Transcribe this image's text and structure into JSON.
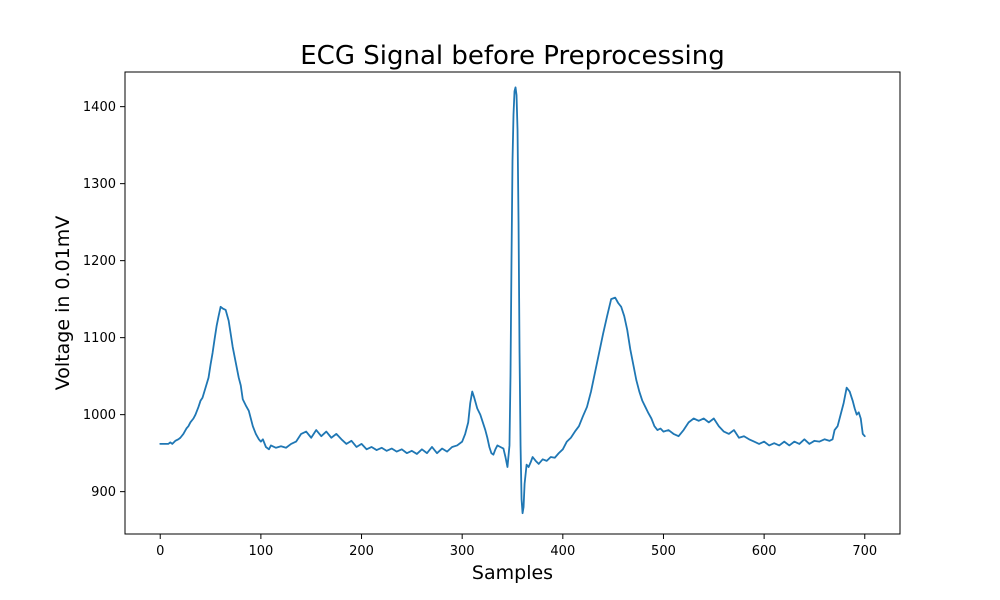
{
  "chart_data": {
    "type": "line",
    "title": "ECG Signal before Preprocessing",
    "xlabel": "Samples",
    "ylabel": "Voltage in 0.01mV",
    "xlim": [
      -35,
      735
    ],
    "ylim": [
      845,
      1445
    ],
    "xticks": [
      0,
      100,
      200,
      300,
      400,
      500,
      600,
      700
    ],
    "yticks": [
      900,
      1000,
      1100,
      1200,
      1300,
      1400
    ],
    "grid": false,
    "legend": "none",
    "series": [
      {
        "color": "#1f77b4",
        "points": [
          [
            0,
            962
          ],
          [
            5,
            962
          ],
          [
            8,
            962
          ],
          [
            10,
            964
          ],
          [
            12,
            962
          ],
          [
            15,
            966
          ],
          [
            18,
            968
          ],
          [
            20,
            970
          ],
          [
            23,
            975
          ],
          [
            26,
            982
          ],
          [
            28,
            985
          ],
          [
            30,
            990
          ],
          [
            33,
            995
          ],
          [
            35,
            1000
          ],
          [
            38,
            1010
          ],
          [
            40,
            1018
          ],
          [
            42,
            1022
          ],
          [
            45,
            1035
          ],
          [
            48,
            1048
          ],
          [
            50,
            1065
          ],
          [
            52,
            1080
          ],
          [
            54,
            1098
          ],
          [
            56,
            1115
          ],
          [
            58,
            1128
          ],
          [
            60,
            1140
          ],
          [
            62,
            1138
          ],
          [
            65,
            1136
          ],
          [
            68,
            1122
          ],
          [
            70,
            1105
          ],
          [
            72,
            1088
          ],
          [
            75,
            1068
          ],
          [
            78,
            1048
          ],
          [
            80,
            1038
          ],
          [
            82,
            1020
          ],
          [
            85,
            1012
          ],
          [
            88,
            1005
          ],
          [
            90,
            995
          ],
          [
            92,
            985
          ],
          [
            95,
            975
          ],
          [
            98,
            968
          ],
          [
            100,
            965
          ],
          [
            102,
            968
          ],
          [
            105,
            958
          ],
          [
            108,
            955
          ],
          [
            110,
            960
          ],
          [
            115,
            957
          ],
          [
            120,
            959
          ],
          [
            125,
            957
          ],
          [
            130,
            962
          ],
          [
            135,
            965
          ],
          [
            140,
            975
          ],
          [
            145,
            978
          ],
          [
            150,
            970
          ],
          [
            155,
            980
          ],
          [
            160,
            972
          ],
          [
            165,
            978
          ],
          [
            170,
            970
          ],
          [
            175,
            975
          ],
          [
            180,
            968
          ],
          [
            185,
            962
          ],
          [
            190,
            966
          ],
          [
            195,
            958
          ],
          [
            200,
            962
          ],
          [
            205,
            955
          ],
          [
            210,
            958
          ],
          [
            215,
            954
          ],
          [
            220,
            957
          ],
          [
            225,
            953
          ],
          [
            230,
            956
          ],
          [
            235,
            952
          ],
          [
            240,
            955
          ],
          [
            245,
            950
          ],
          [
            250,
            953
          ],
          [
            255,
            949
          ],
          [
            260,
            955
          ],
          [
            265,
            950
          ],
          [
            270,
            958
          ],
          [
            275,
            950
          ],
          [
            280,
            956
          ],
          [
            285,
            952
          ],
          [
            290,
            958
          ],
          [
            295,
            960
          ],
          [
            300,
            965
          ],
          [
            303,
            975
          ],
          [
            306,
            990
          ],
          [
            308,
            1015
          ],
          [
            310,
            1030
          ],
          [
            312,
            1022
          ],
          [
            315,
            1008
          ],
          [
            318,
            1000
          ],
          [
            320,
            992
          ],
          [
            323,
            980
          ],
          [
            325,
            970
          ],
          [
            327,
            958
          ],
          [
            329,
            950
          ],
          [
            331,
            948
          ],
          [
            333,
            955
          ],
          [
            335,
            960
          ],
          [
            338,
            958
          ],
          [
            341,
            956
          ],
          [
            343,
            945
          ],
          [
            345,
            932
          ],
          [
            347,
            960
          ],
          [
            348,
            1050
          ],
          [
            349,
            1200
          ],
          [
            350,
            1330
          ],
          [
            351,
            1390
          ],
          [
            352,
            1420
          ],
          [
            353,
            1425
          ],
          [
            354,
            1415
          ],
          [
            355,
            1370
          ],
          [
            356,
            1250
          ],
          [
            357,
            1080
          ],
          [
            358,
            960
          ],
          [
            359,
            890
          ],
          [
            360,
            872
          ],
          [
            361,
            880
          ],
          [
            362,
            910
          ],
          [
            364,
            935
          ],
          [
            366,
            932
          ],
          [
            368,
            938
          ],
          [
            370,
            945
          ],
          [
            373,
            940
          ],
          [
            376,
            936
          ],
          [
            380,
            942
          ],
          [
            384,
            940
          ],
          [
            388,
            945
          ],
          [
            392,
            944
          ],
          [
            396,
            950
          ],
          [
            400,
            955
          ],
          [
            404,
            965
          ],
          [
            408,
            970
          ],
          [
            412,
            978
          ],
          [
            416,
            985
          ],
          [
            420,
            998
          ],
          [
            424,
            1010
          ],
          [
            428,
            1030
          ],
          [
            432,
            1055
          ],
          [
            436,
            1080
          ],
          [
            440,
            1105
          ],
          [
            444,
            1128
          ],
          [
            448,
            1150
          ],
          [
            452,
            1152
          ],
          [
            455,
            1145
          ],
          [
            458,
            1140
          ],
          [
            461,
            1128
          ],
          [
            464,
            1110
          ],
          [
            467,
            1085
          ],
          [
            470,
            1065
          ],
          [
            473,
            1045
          ],
          [
            476,
            1030
          ],
          [
            479,
            1018
          ],
          [
            482,
            1010
          ],
          [
            485,
            1002
          ],
          [
            488,
            995
          ],
          [
            491,
            985
          ],
          [
            494,
            980
          ],
          [
            497,
            982
          ],
          [
            500,
            978
          ],
          [
            505,
            980
          ],
          [
            510,
            975
          ],
          [
            515,
            972
          ],
          [
            520,
            980
          ],
          [
            525,
            990
          ],
          [
            530,
            995
          ],
          [
            535,
            992
          ],
          [
            540,
            995
          ],
          [
            545,
            990
          ],
          [
            550,
            995
          ],
          [
            555,
            985
          ],
          [
            560,
            978
          ],
          [
            565,
            975
          ],
          [
            570,
            980
          ],
          [
            575,
            970
          ],
          [
            580,
            972
          ],
          [
            585,
            968
          ],
          [
            590,
            965
          ],
          [
            595,
            962
          ],
          [
            600,
            965
          ],
          [
            605,
            960
          ],
          [
            610,
            963
          ],
          [
            615,
            960
          ],
          [
            620,
            965
          ],
          [
            625,
            960
          ],
          [
            630,
            965
          ],
          [
            635,
            962
          ],
          [
            640,
            968
          ],
          [
            645,
            962
          ],
          [
            650,
            966
          ],
          [
            655,
            965
          ],
          [
            660,
            968
          ],
          [
            665,
            966
          ],
          [
            668,
            968
          ],
          [
            670,
            980
          ],
          [
            673,
            985
          ],
          [
            676,
            1000
          ],
          [
            679,
            1015
          ],
          [
            682,
            1035
          ],
          [
            685,
            1030
          ],
          [
            688,
            1018
          ],
          [
            690,
            1008
          ],
          [
            692,
            1000
          ],
          [
            694,
            1003
          ],
          [
            696,
            995
          ],
          [
            698,
            975
          ],
          [
            700,
            972
          ]
        ]
      }
    ]
  }
}
